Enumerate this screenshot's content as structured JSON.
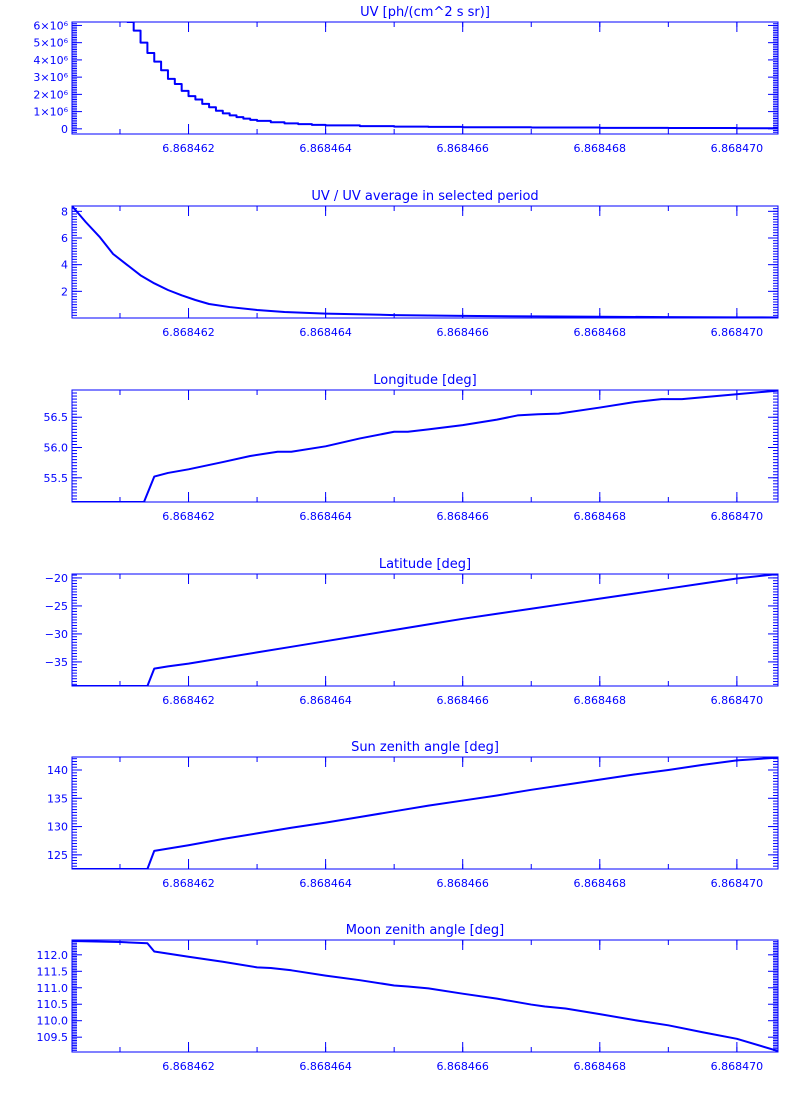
{
  "style": {
    "line_color": "#0000ff",
    "background_color": "#ffffff"
  },
  "chart_data": [
    {
      "type": "line",
      "step": true,
      "title": "UV [ph/(cm^2 s sr)]",
      "xlabel": "",
      "ylabel": "",
      "xlim": [
        6.8684603,
        6.8684706
      ],
      "ylim": [
        -300000,
        6200000
      ],
      "x_ticks": [
        6.868462,
        6.868464,
        6.868466,
        6.868468,
        6.86847
      ],
      "x_tick_labels": [
        "6.868462",
        "6.868464",
        "6.868466",
        "6.868468",
        "6.868470"
      ],
      "y_ticks": [
        0,
        1000000,
        2000000,
        3000000,
        4000000,
        5000000,
        6000000
      ],
      "y_tick_labels": [
        "0",
        "1×10⁶",
        "2×10⁶",
        "3×10⁶",
        "4×10⁶",
        "5×10⁶",
        "6×10⁶"
      ],
      "series": [
        {
          "x": [
            6.8684611,
            6.8684612,
            6.8684613,
            6.8684614,
            6.8684615,
            6.8684616,
            6.8684617,
            6.8684618,
            6.8684619,
            6.868462,
            6.8684621,
            6.8684622,
            6.8684623,
            6.8684624,
            6.8684625,
            6.8684626,
            6.8684627,
            6.8684628,
            6.8684629,
            6.868463,
            6.8684632,
            6.8684634,
            6.8684636,
            6.8684638,
            6.868464,
            6.8684645,
            6.868465,
            6.8684655,
            6.868466,
            6.868467,
            6.868468,
            6.868469,
            6.86847,
            6.8684706
          ],
          "y": [
            6200000,
            5700000,
            5000000,
            4400000,
            3900000,
            3400000,
            2900000,
            2600000,
            2200000,
            1900000,
            1700000,
            1450000,
            1250000,
            1050000,
            900000,
            780000,
            680000,
            590000,
            520000,
            460000,
            380000,
            320000,
            270000,
            230000,
            200000,
            160000,
            130000,
            110000,
            95000,
            75000,
            55000,
            45000,
            35000,
            30000
          ]
        }
      ]
    },
    {
      "type": "line",
      "title": "UV / UV average in selected period",
      "xlabel": "",
      "ylabel": "",
      "xlim": [
        6.8684603,
        6.8684706
      ],
      "ylim": [
        0,
        8.4
      ],
      "x_ticks": [
        6.868462,
        6.868464,
        6.868466,
        6.868468,
        6.86847
      ],
      "x_tick_labels": [
        "6.868462",
        "6.868464",
        "6.868466",
        "6.868468",
        "6.868470"
      ],
      "y_ticks": [
        2,
        4,
        6,
        8
      ],
      "y_tick_labels": [
        "2",
        "4",
        "6",
        "8"
      ],
      "series": [
        {
          "x": [
            6.8684603,
            6.8684605,
            6.8684607,
            6.8684609,
            6.8684611,
            6.8684613,
            6.8684615,
            6.8684617,
            6.8684619,
            6.8684621,
            6.8684623,
            6.8684626,
            6.868463,
            6.8684634,
            6.868464,
            6.868465,
            6.868466,
            6.868467,
            6.868468,
            6.868469,
            6.86847,
            6.8684706
          ],
          "y": [
            8.4,
            7.2,
            6.1,
            4.8,
            4.0,
            3.2,
            2.6,
            2.1,
            1.7,
            1.35,
            1.05,
            0.82,
            0.6,
            0.45,
            0.33,
            0.22,
            0.16,
            0.12,
            0.09,
            0.07,
            0.05,
            0.04
          ]
        }
      ]
    },
    {
      "type": "line",
      "title": "Longitude [deg]",
      "xlabel": "",
      "ylabel": "",
      "xlim": [
        6.8684603,
        6.8684706
      ],
      "ylim": [
        55.1,
        56.95
      ],
      "x_ticks": [
        6.868462,
        6.868464,
        6.868466,
        6.868468,
        6.86847
      ],
      "x_tick_labels": [
        "6.868462",
        "6.868464",
        "6.868466",
        "6.868468",
        "6.868470"
      ],
      "y_ticks": [
        55.5,
        56.0,
        56.5
      ],
      "y_tick_labels": [
        "55.5",
        "56.0",
        "56.5"
      ],
      "series": [
        {
          "x": [
            6.8684603,
            6.86846135,
            6.8684615,
            6.8684617,
            6.868462,
            6.8684625,
            6.8684629,
            6.8684633,
            6.8684635,
            6.868464,
            6.8684645,
            6.868465,
            6.8684652,
            6.8684655,
            6.868466,
            6.8684665,
            6.8684668,
            6.8684671,
            6.8684674,
            6.868468,
            6.8684685,
            6.8684689,
            6.8684692,
            6.8684706
          ],
          "y": [
            55.1,
            55.1,
            55.52,
            55.58,
            55.64,
            55.76,
            55.86,
            55.93,
            55.93,
            56.02,
            56.15,
            56.26,
            56.26,
            56.3,
            56.37,
            56.46,
            56.53,
            56.55,
            56.56,
            56.66,
            56.75,
            56.8,
            56.8,
            56.94
          ]
        }
      ]
    },
    {
      "type": "line",
      "title": "Latitude [deg]",
      "xlabel": "",
      "ylabel": "",
      "xlim": [
        6.8684603,
        6.8684706
      ],
      "ylim": [
        -39.3,
        -19.3
      ],
      "x_ticks": [
        6.868462,
        6.868464,
        6.868466,
        6.868468,
        6.86847
      ],
      "x_tick_labels": [
        "6.868462",
        "6.868464",
        "6.868466",
        "6.868468",
        "6.868470"
      ],
      "y_ticks": [
        -35,
        -30,
        -25,
        -20
      ],
      "y_tick_labels": [
        "−35",
        "−30",
        "−25",
        "−20"
      ],
      "series": [
        {
          "x": [
            6.8684603,
            6.8684614,
            6.8684615,
            6.8684617,
            6.868462,
            6.8684625,
            6.868463,
            6.8684635,
            6.868464,
            6.8684645,
            6.868465,
            6.8684655,
            6.868466,
            6.8684665,
            6.868467,
            6.8684675,
            6.868468,
            6.8684685,
            6.868469,
            6.8684695,
            6.86847,
            6.8684706
          ],
          "y": [
            -39.3,
            -39.3,
            -36.2,
            -35.8,
            -35.3,
            -34.3,
            -33.3,
            -32.3,
            -31.3,
            -30.3,
            -29.3,
            -28.3,
            -27.3,
            -26.4,
            -25.5,
            -24.6,
            -23.7,
            -22.8,
            -21.9,
            -21.0,
            -20.1,
            -19.3
          ]
        }
      ]
    },
    {
      "type": "line",
      "title": "Sun zenith angle [deg]",
      "xlabel": "",
      "ylabel": "",
      "xlim": [
        6.8684603,
        6.8684706
      ],
      "ylim": [
        122.5,
        142.3
      ],
      "x_ticks": [
        6.868462,
        6.868464,
        6.868466,
        6.868468,
        6.86847
      ],
      "x_tick_labels": [
        "6.868462",
        "6.868464",
        "6.868466",
        "6.868468",
        "6.868470"
      ],
      "y_ticks": [
        125,
        130,
        135,
        140
      ],
      "y_tick_labels": [
        "125",
        "130",
        "135",
        "140"
      ],
      "series": [
        {
          "x": [
            6.8684603,
            6.8684614,
            6.8684615,
            6.8684617,
            6.868462,
            6.8684625,
            6.868463,
            6.8684635,
            6.868464,
            6.8684645,
            6.868465,
            6.8684655,
            6.868466,
            6.8684665,
            6.868467,
            6.8684675,
            6.868468,
            6.8684685,
            6.868469,
            6.8684695,
            6.86847,
            6.8684706
          ],
          "y": [
            122.5,
            122.5,
            125.7,
            126.1,
            126.7,
            127.8,
            128.8,
            129.8,
            130.7,
            131.7,
            132.7,
            133.7,
            134.6,
            135.5,
            136.5,
            137.4,
            138.3,
            139.2,
            140.0,
            140.9,
            141.7,
            142.2
          ]
        }
      ]
    },
    {
      "type": "line",
      "title": "Moon zenith angle [deg]",
      "xlabel": "",
      "ylabel": "",
      "xlim": [
        6.8684603,
        6.8684706
      ],
      "ylim": [
        109.05,
        112.45
      ],
      "x_ticks": [
        6.868462,
        6.868464,
        6.868466,
        6.868468,
        6.86847
      ],
      "x_tick_labels": [
        "6.868462",
        "6.868464",
        "6.868466",
        "6.868468",
        "6.868470"
      ],
      "y_ticks": [
        109.5,
        110.0,
        110.5,
        111.0,
        111.5,
        112.0
      ],
      "y_tick_labels": [
        "109.5",
        "110.0",
        "110.5",
        "111.0",
        "111.5",
        "112.0"
      ],
      "series": [
        {
          "x": [
            6.8684603,
            6.868461,
            6.8684614,
            6.8684615,
            6.868462,
            6.8684625,
            6.868463,
            6.8684632,
            6.8684635,
            6.868464,
            6.8684645,
            6.868465,
            6.8684652,
            6.8684655,
            6.868466,
            6.8684665,
            6.868467,
            6.8684672,
            6.8684675,
            6.868468,
            6.8684685,
            6.868469,
            6.8684695,
            6.86847,
            6.8684706
          ],
          "y": [
            112.42,
            112.39,
            112.35,
            112.1,
            111.94,
            111.79,
            111.62,
            111.6,
            111.53,
            111.37,
            111.23,
            111.07,
            111.04,
            110.98,
            110.82,
            110.67,
            110.49,
            110.43,
            110.37,
            110.2,
            110.02,
            109.86,
            109.65,
            109.45,
            109.08
          ]
        }
      ]
    }
  ]
}
